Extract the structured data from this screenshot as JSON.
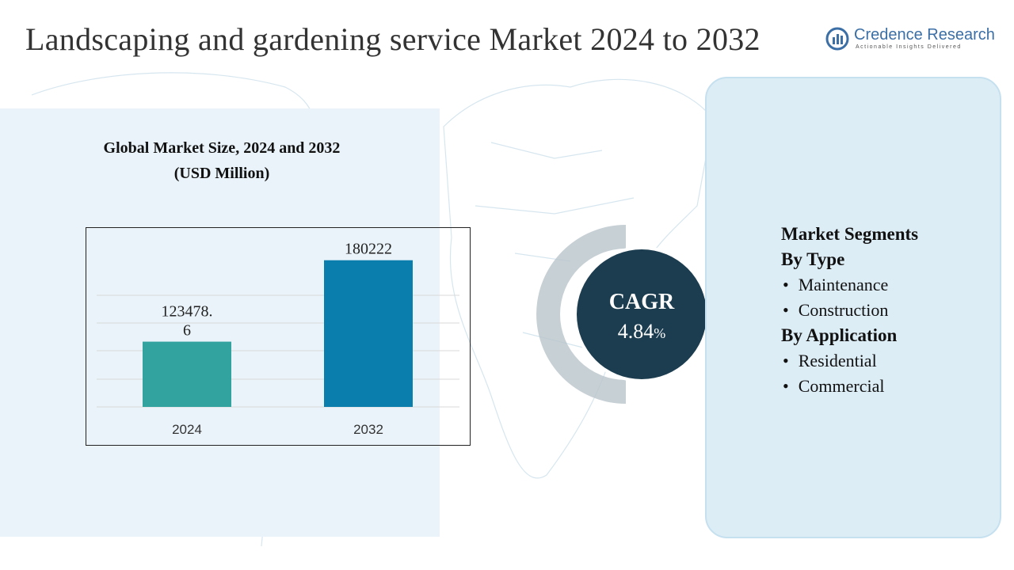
{
  "header": {
    "title": "Landscaping and gardening service Market 2024 to 2032",
    "brand": "Credence Research",
    "tagline": "Actionable Insights Delivered"
  },
  "chart_data": {
    "type": "bar",
    "title": "Global Market Size, 2024 and 2032",
    "subtitle": "(USD Million)",
    "categories": [
      "2024",
      "2032"
    ],
    "values": [
      123478.6,
      180222
    ],
    "colors": [
      "#33a39f",
      "#0a7fae"
    ],
    "ylim": [
      78000,
      190000
    ]
  },
  "cagr": {
    "label": "CAGR",
    "value": "4.84",
    "unit": "%"
  },
  "segments": {
    "title": "Market Segments",
    "groups": [
      {
        "title": "By Type",
        "items": [
          "Maintenance",
          "Construction"
        ]
      },
      {
        "title": "By Application",
        "items": [
          "Residential",
          "Commercial"
        ]
      }
    ]
  }
}
